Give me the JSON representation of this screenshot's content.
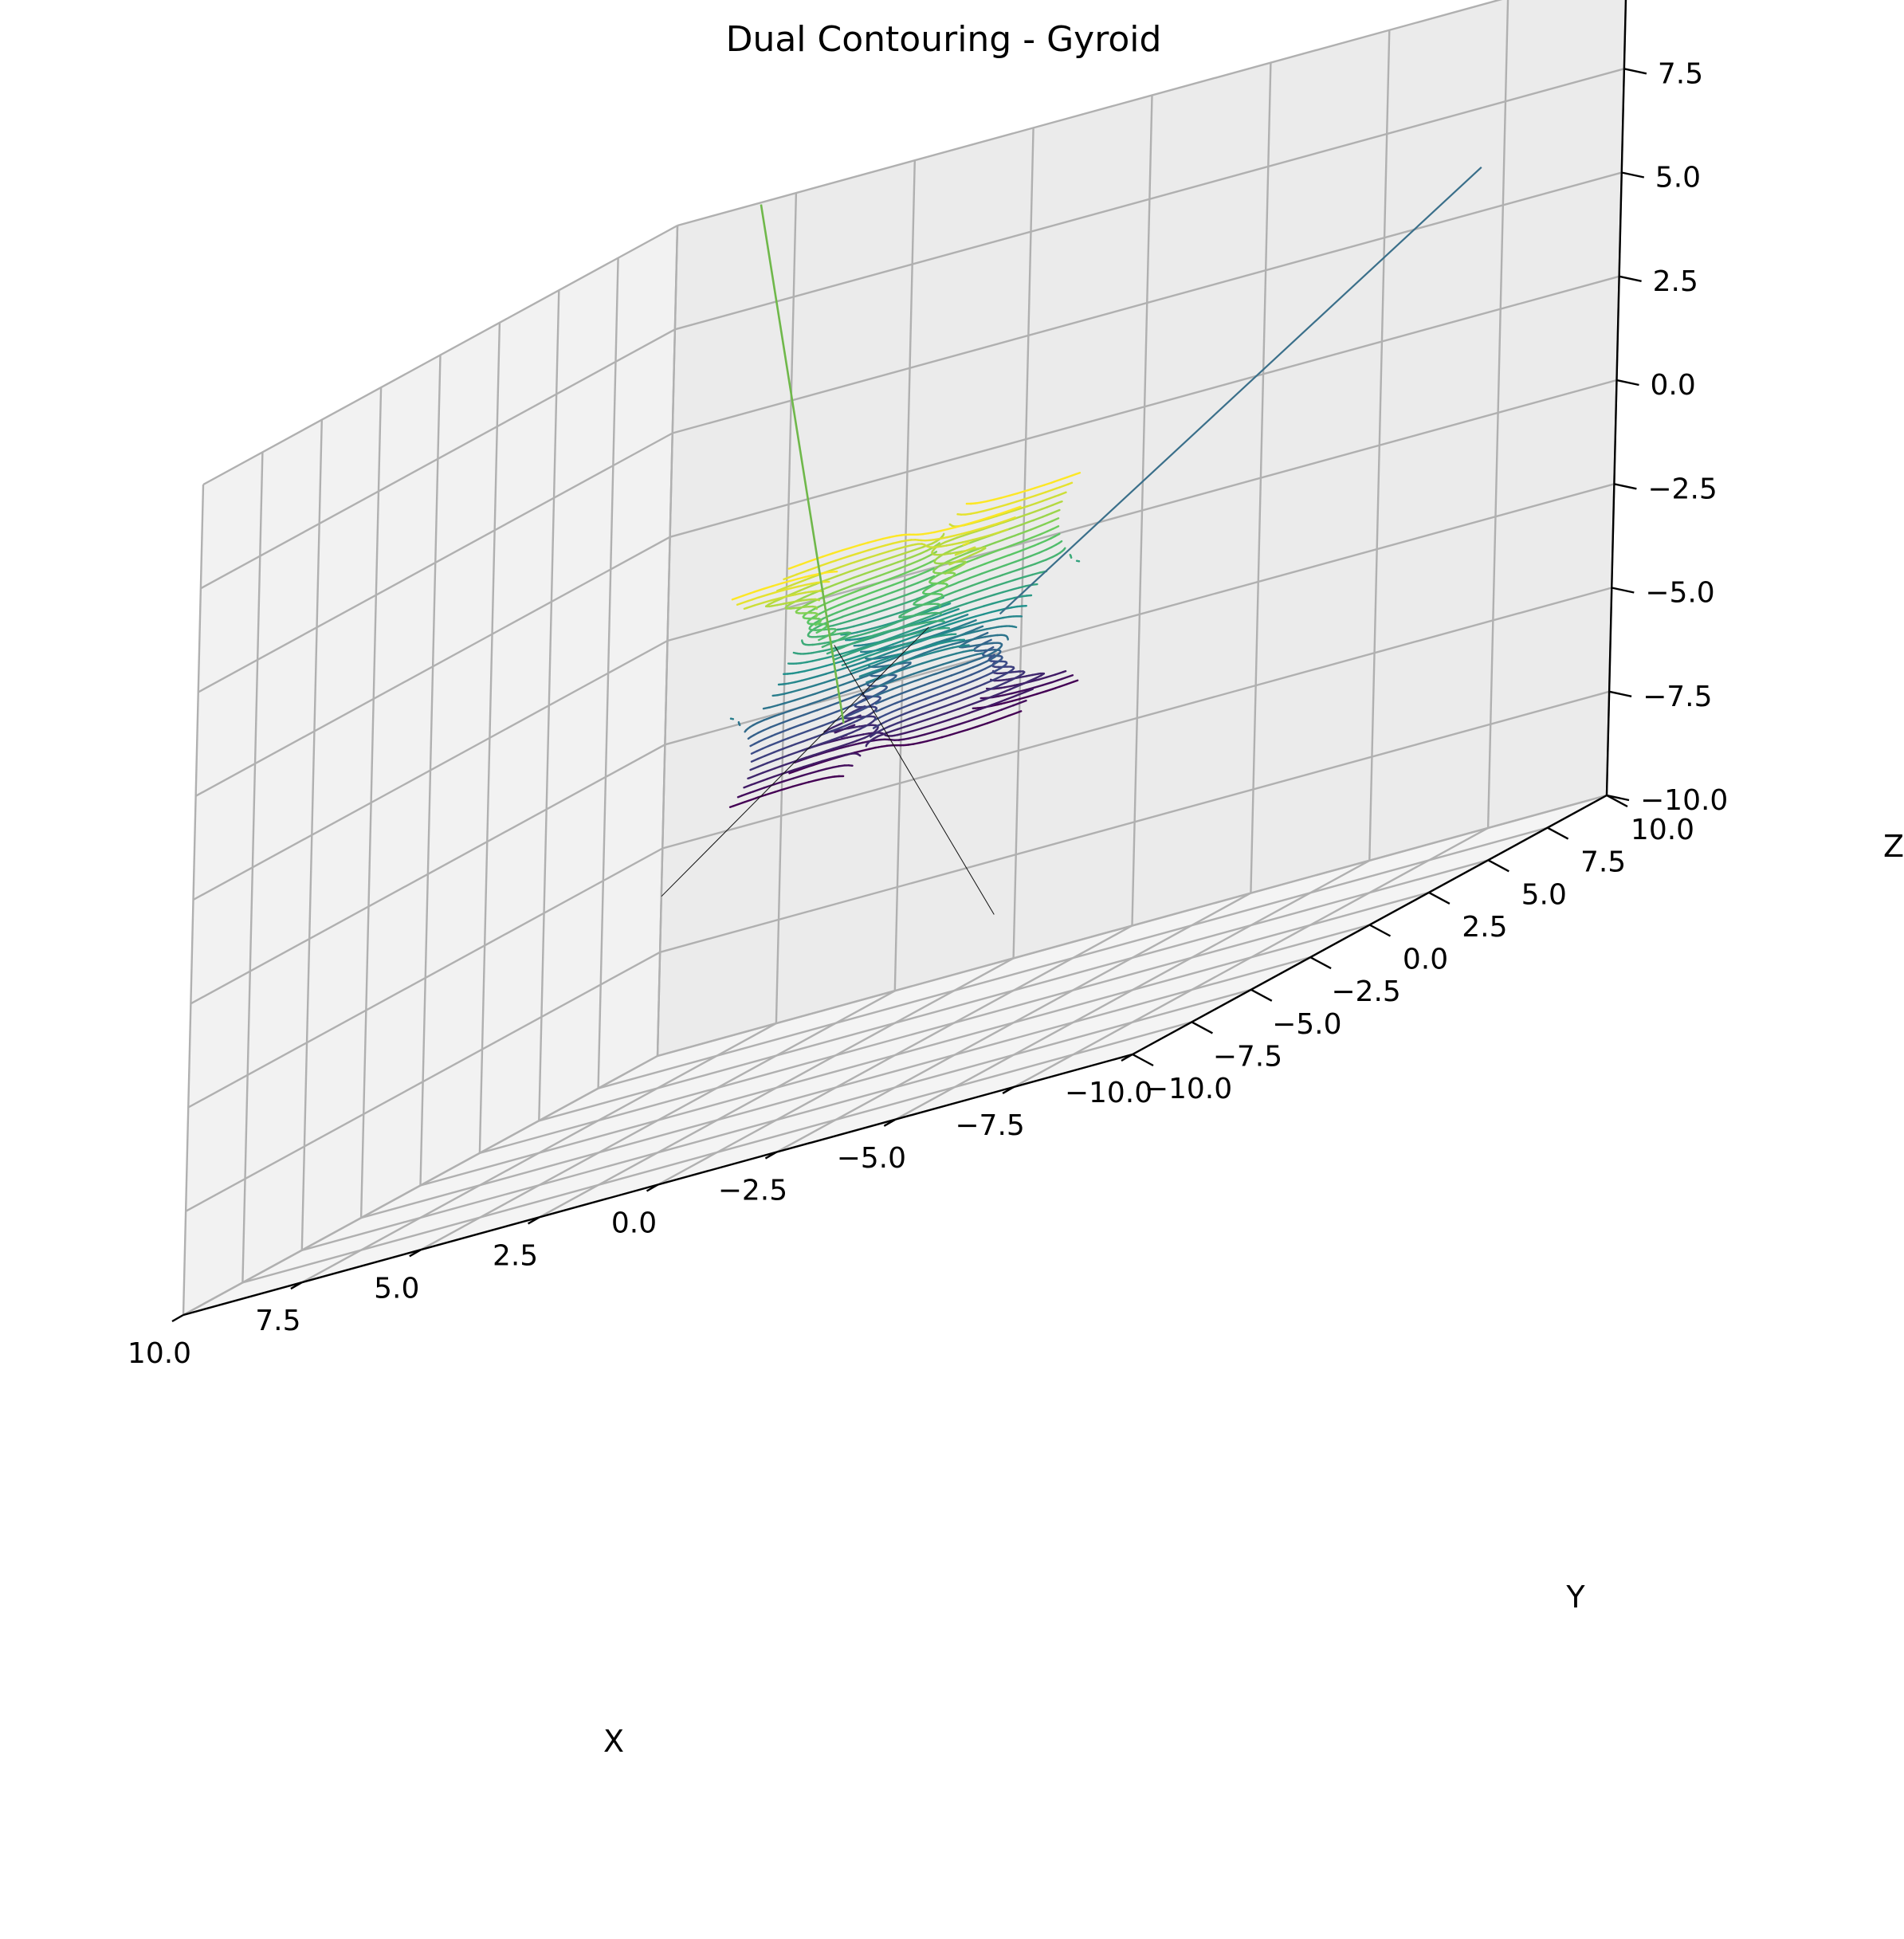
{
  "chart_data": {
    "type": "surface3d",
    "title": "Dual Contouring - Gyroid",
    "xlabel": "X",
    "ylabel": "Y",
    "zlabel": "Z",
    "xlim": [
      -10,
      10
    ],
    "ylim": [
      -10,
      10
    ],
    "zlim": [
      -10,
      10
    ],
    "ticks": [
      -10.0,
      -7.5,
      -5.0,
      -2.5,
      0.0,
      2.5,
      5.0,
      7.5,
      10.0
    ],
    "tick_labels": [
      "−10.0",
      "−7.5",
      "−5.0",
      "−2.5",
      "0.0",
      "2.5",
      "5.0",
      "7.5",
      "10.0"
    ],
    "grid": true,
    "colormap": "viridis",
    "colormap_stops": [
      "#440154",
      "#3b528b",
      "#21918c",
      "#5ec962",
      "#fde725"
    ],
    "pane_colors": {
      "left": "#f2f2f2",
      "right": "#ebebeb",
      "floor": "#f4f4f4"
    },
    "surface": {
      "equation": "sin(x)cos(y) + sin(y)cos(z) + sin(z)cos(x) = 0",
      "extent": [
        -2.5,
        2.5
      ]
    },
    "artifact_lines": [
      {
        "from": [
          -2.0,
          0.0,
          0.0
        ],
        "to": [
          -10.0,
          4.0,
          7.0
        ],
        "color": "#3a6f8a",
        "width": 2.2
      },
      {
        "from": [
          0.0,
          1.0,
          0.0
        ],
        "to": [
          9.5,
          9.0,
          -6.0
        ],
        "color": "#111111",
        "width": 1.0
      },
      {
        "from": [
          1.0,
          -1.0,
          0.5
        ],
        "to": [
          -6.0,
          -8.0,
          -6.0
        ],
        "color": "#111111",
        "width": 1.0
      },
      {
        "from": [
          2.5,
          2.5,
          -2.0
        ],
        "to": [
          6.5,
          6.5,
          10.5
        ],
        "color": "#6fb84a",
        "width": 2.6
      }
    ]
  }
}
